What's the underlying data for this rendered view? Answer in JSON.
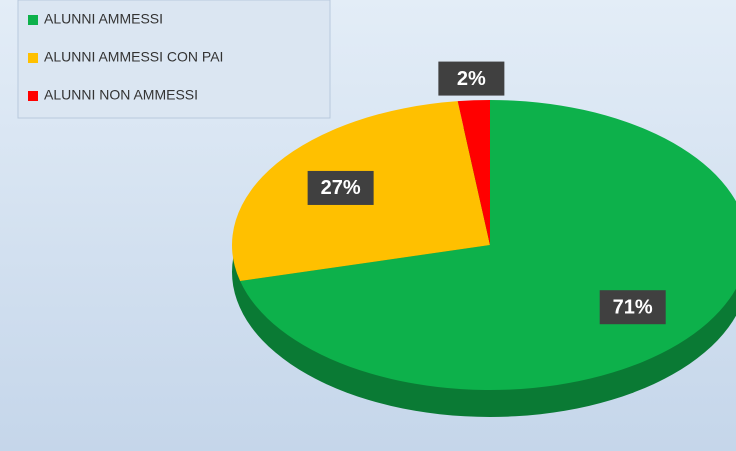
{
  "chart_data": {
    "type": "pie",
    "categories": [
      "ALUNNI AMMESSI",
      "ALUNNI AMMESSI CON PAI",
      "ALUNNI NON AMMESSI"
    ],
    "values": [
      71,
      27,
      2
    ],
    "value_labels": [
      "71%",
      "27%",
      "2%"
    ],
    "colors": [
      "#0db14b",
      "#ffc000",
      "#ff0000"
    ],
    "legend": "top-left"
  }
}
